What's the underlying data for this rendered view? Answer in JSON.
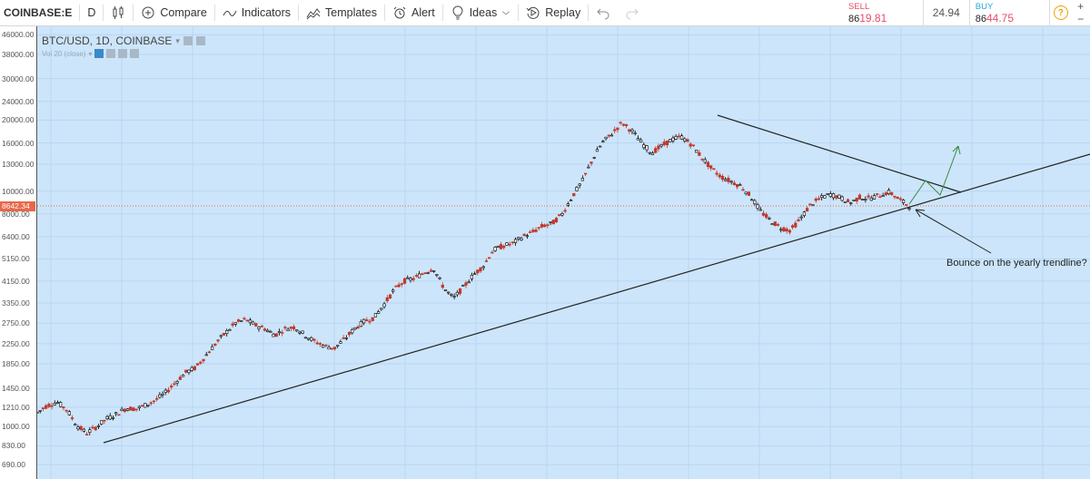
{
  "toolbar": {
    "symbol": "COINBASE:E",
    "interval": "D",
    "compare": "Compare",
    "indicators": "Indicators",
    "templates": "Templates",
    "alert": "Alert",
    "ideas": "Ideas",
    "replay": "Replay"
  },
  "trade": {
    "sell_label": "SELL",
    "sell_price_a": "86",
    "sell_price_b": "19.81",
    "spread": "24.94",
    "buy_label": "BUY",
    "buy_price_a": "86",
    "buy_price_b": "44.75",
    "plus": "+",
    "minus": "−"
  },
  "chart": {
    "title": "BTC/USD, 1D, COINBASE",
    "mini_legend": "Vol 20 (close)",
    "current_price": "8642.34",
    "annotation": "Bounce on the yearly trendline?",
    "axis_ticks": [
      "46000.00",
      "38000.00",
      "30000.00",
      "24000.00",
      "20000.00",
      "16000.00",
      "13000.00",
      "10000.00",
      "8000.00",
      "6400.00",
      "5150.00",
      "4150.00",
      "3350.00",
      "2750.00",
      "2250.00",
      "1850.00",
      "1450.00",
      "1210.00",
      "1000.00",
      "830.00",
      "690.00"
    ],
    "colors": {
      "background": "#cce5fb",
      "up_candle": "#000000",
      "down_candle": "#c0392b",
      "trendline": "#222222",
      "projection": "#3a8a3a",
      "price_tag": "#e8674a"
    }
  },
  "chart_data": {
    "type": "candlestick",
    "title": "BTC/USD, 1D, COINBASE",
    "ylabel": "",
    "ylim": [
      600,
      50000
    ],
    "scale": "log",
    "current_price": 8642.34,
    "close_series": [
      1150,
      1230,
      1270,
      1180,
      1010,
      940,
      1000,
      1080,
      1130,
      1200,
      1190,
      1240,
      1300,
      1400,
      1550,
      1700,
      1780,
      2000,
      2250,
      2500,
      2750,
      2850,
      2700,
      2600,
      2450,
      2600,
      2650,
      2450,
      2300,
      2200,
      2150,
      2350,
      2600,
      2800,
      2900,
      3300,
      3800,
      4150,
      4250,
      4500,
      4700,
      3900,
      3500,
      3900,
      4400,
      4800,
      5600,
      5850,
      6000,
      6400,
      6700,
      7100,
      7300,
      8000,
      9500,
      11000,
      13500,
      16000,
      17500,
      19500,
      18000,
      16000,
      14500,
      15500,
      16500,
      17000,
      15800,
      14000,
      12500,
      11500,
      11000,
      10500,
      9500,
      8200,
      7500,
      7000,
      6800,
      7600,
      8700,
      9300,
      9700,
      9400,
      8900,
      9400,
      9300,
      9600,
      9900,
      9200,
      8642
    ]
  }
}
